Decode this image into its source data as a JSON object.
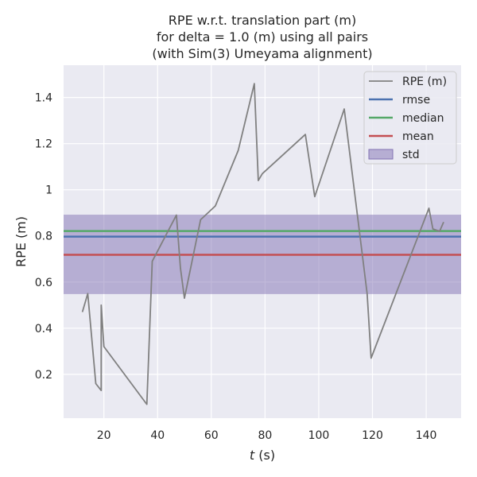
{
  "chart_data": {
    "type": "line",
    "title_lines": [
      "RPE w.r.t. translation part (m)",
      "for delta = 1.0 (m) using all pairs",
      "(with Sim(3) Umeyama alignment)"
    ],
    "xlabel_italic": "t",
    "xlabel_rest": " (s)",
    "ylabel": "RPE (m)",
    "xlim": [
      5,
      153
    ],
    "ylim": [
      0.01,
      1.54
    ],
    "xticks": [
      20,
      40,
      60,
      80,
      100,
      120,
      140
    ],
    "yticks": [
      0.2,
      0.4,
      0.6,
      0.8,
      1.0,
      1.2,
      1.4
    ],
    "grid": true,
    "legend_position": "top-right",
    "series": [
      {
        "name": "RPE (m)",
        "color": "#808080",
        "x": [
          12,
          14,
          17,
          19,
          19,
          20,
          36,
          38,
          47,
          48.5,
          50,
          56,
          61.5,
          70,
          76,
          77.5,
          79,
          95,
          98.5,
          109.5,
          118,
          119.5,
          141,
          142.5,
          145,
          146.5
        ],
        "y": [
          0.47,
          0.55,
          0.16,
          0.13,
          0.5,
          0.32,
          0.07,
          0.69,
          0.89,
          0.66,
          0.53,
          0.87,
          0.93,
          1.17,
          1.46,
          1.04,
          1.07,
          1.24,
          0.97,
          1.35,
          0.55,
          0.27,
          0.92,
          0.83,
          0.82,
          0.86
        ]
      }
    ],
    "statistics": [
      {
        "name": "rmse",
        "value": 0.797,
        "color": "#4c72b0"
      },
      {
        "name": "median",
        "value": 0.821,
        "color": "#55a868"
      },
      {
        "name": "mean",
        "value": 0.718,
        "color": "#c44e52"
      }
    ],
    "std_band": {
      "name": "std",
      "lower": 0.548,
      "upper": 0.892,
      "color": "#8172b3"
    }
  }
}
